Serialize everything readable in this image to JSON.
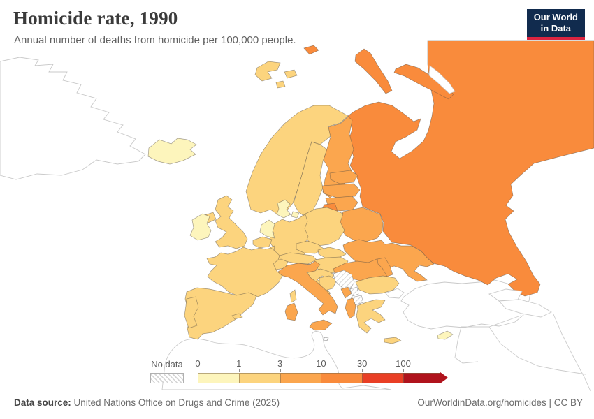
{
  "header": {
    "title": "Homicide rate, 1990",
    "subtitle": "Annual number of deaths from homicide per 100,000 people."
  },
  "logo": {
    "line1": "Our World",
    "line2": "in Data",
    "bg": "#112b4e",
    "accent": "#dc2440"
  },
  "legend": {
    "no_data_label": "No data",
    "ticks": [
      "0",
      "1",
      "3",
      "10",
      "30",
      "100"
    ],
    "bins": [
      {
        "id": "0-1",
        "color": "#fdf5bc"
      },
      {
        "id": "1-3",
        "color": "#fcd47e"
      },
      {
        "id": "3-10",
        "color": "#fba64e"
      },
      {
        "id": "10-30",
        "color": "#f98b3c"
      },
      {
        "id": "30-100",
        "color": "#e93f25"
      },
      {
        "id": "100+",
        "color": "#b0131d",
        "arrow": true
      }
    ]
  },
  "footer": {
    "source_label": "Data source:",
    "source_text": " United Nations Office on Drugs and Crime (2025)",
    "credit": "OurWorldinData.org/homicides | CC BY"
  },
  "chart_data": {
    "type": "choropleth_map",
    "title": "Homicide rate, 1990",
    "unit": "annual deaths from homicide per 100,000 people",
    "region_shown": "Europe",
    "bins": [
      "0-1",
      "1-3",
      "3-10",
      "10-30",
      "30-100",
      "100+"
    ],
    "no_data_countries": [
      "Serbia",
      "Kosovo",
      "North Macedonia",
      "Malta"
    ],
    "countries": [
      {
        "id": "russia",
        "name": "Russia",
        "bin": "10-30"
      },
      {
        "id": "norway",
        "name": "Norway",
        "bin": "1-3"
      },
      {
        "id": "sweden",
        "name": "Sweden",
        "bin": "1-3"
      },
      {
        "id": "finland",
        "name": "Finland",
        "bin": "3-10"
      },
      {
        "id": "denmark",
        "name": "Denmark",
        "bin": "0-1"
      },
      {
        "id": "estonia",
        "name": "Estonia",
        "bin": "3-10"
      },
      {
        "id": "latvia",
        "name": "Latvia",
        "bin": "3-10"
      },
      {
        "id": "lithuania",
        "name": "Lithuania",
        "bin": "3-10"
      },
      {
        "id": "kaliningrad",
        "name": "Russia",
        "bin": "10-30"
      },
      {
        "id": "belarus",
        "name": "Belarus",
        "bin": "3-10"
      },
      {
        "id": "ukraine",
        "name": "Ukraine",
        "bin": "3-10"
      },
      {
        "id": "poland",
        "name": "Poland",
        "bin": "1-3"
      },
      {
        "id": "germany",
        "name": "Germany",
        "bin": "1-3"
      },
      {
        "id": "netherlands",
        "name": "Netherlands",
        "bin": "0-1"
      },
      {
        "id": "belgium",
        "name": "Belgium",
        "bin": "1-3"
      },
      {
        "id": "luxembourg",
        "name": "Luxembourg",
        "bin": "1-3"
      },
      {
        "id": "czechia",
        "name": "Czechia",
        "bin": "1-3"
      },
      {
        "id": "slovakia",
        "name": "Slovakia",
        "bin": "1-3"
      },
      {
        "id": "austria",
        "name": "Austria",
        "bin": "1-3"
      },
      {
        "id": "switzerland",
        "name": "Switzerland",
        "bin": "1-3"
      },
      {
        "id": "hungary",
        "name": "Hungary",
        "bin": "1-3"
      },
      {
        "id": "romania",
        "name": "Romania",
        "bin": "3-10"
      },
      {
        "id": "moldova",
        "name": "Moldova",
        "bin": "3-10"
      },
      {
        "id": "slovenia",
        "name": "Slovenia",
        "bin": "1-3"
      },
      {
        "id": "croatia",
        "name": "Croatia",
        "bin": "1-3"
      },
      {
        "id": "bosnia",
        "name": "Bosnia and Herzegovina",
        "bin": "1-3"
      },
      {
        "id": "serbia",
        "name": "Serbia",
        "bin": "no-data"
      },
      {
        "id": "montenegro",
        "name": "Montenegro",
        "bin": "3-10"
      },
      {
        "id": "kosovo",
        "name": "Kosovo",
        "bin": "no-data"
      },
      {
        "id": "north-macedonia",
        "name": "North Macedonia",
        "bin": "no-data"
      },
      {
        "id": "albania",
        "name": "Albania",
        "bin": "3-10"
      },
      {
        "id": "bulgaria",
        "name": "Bulgaria",
        "bin": "1-3"
      },
      {
        "id": "greece",
        "name": "Greece",
        "bin": "1-3"
      },
      {
        "id": "italy",
        "name": "Italy",
        "bin": "3-10"
      },
      {
        "id": "france",
        "name": "France",
        "bin": "1-3"
      },
      {
        "id": "spain",
        "name": "Spain",
        "bin": "1-3"
      },
      {
        "id": "portugal",
        "name": "Portugal",
        "bin": "1-3"
      },
      {
        "id": "uk",
        "name": "United Kingdom",
        "bin": "1-3"
      },
      {
        "id": "ireland",
        "name": "Ireland",
        "bin": "0-1"
      },
      {
        "id": "iceland",
        "name": "Iceland",
        "bin": "0-1"
      },
      {
        "id": "cyprus",
        "name": "Cyprus",
        "bin": "0-1"
      },
      {
        "id": "malta",
        "name": "Malta",
        "bin": "no-data"
      }
    ]
  }
}
